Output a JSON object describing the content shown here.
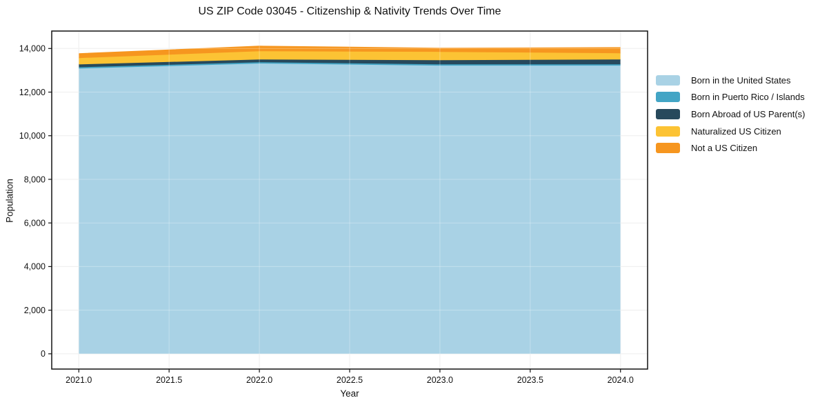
{
  "chart_data": {
    "type": "area",
    "stacked": true,
    "title": "US ZIP Code 03045 - Citizenship & Nativity Trends Over Time",
    "xlabel": "Year",
    "ylabel": "Population",
    "x": [
      2021,
      2022,
      2023,
      2024
    ],
    "series": [
      {
        "name": "Born in the United States",
        "color": "#a9d2e5",
        "values": [
          13080,
          13310,
          13215,
          13215
        ]
      },
      {
        "name": "Born in Puerto Rico / Islands",
        "color": "#43a5c5",
        "values": [
          60,
          60,
          60,
          60
        ]
      },
      {
        "name": "Born Abroad of US Parent(s)",
        "color": "#27495c",
        "values": [
          130,
          125,
          190,
          220
        ]
      },
      {
        "name": "Naturalized US Citizen",
        "color": "#fcc334",
        "values": [
          290,
          380,
          380,
          285
        ]
      },
      {
        "name": "Not a US Citizen",
        "color": "#f6961f",
        "values": [
          190,
          220,
          155,
          250
        ]
      }
    ],
    "totals": [
      13750,
      14095,
      14000,
      14030
    ],
    "xlim": [
      2020.85,
      2024.15
    ],
    "ylim": [
      -700,
      14800
    ],
    "x_ticks": [
      {
        "v": 2021.0,
        "label": "2021.0"
      },
      {
        "v": 2021.5,
        "label": "2021.5"
      },
      {
        "v": 2022.0,
        "label": "2022.0"
      },
      {
        "v": 2022.5,
        "label": "2022.5"
      },
      {
        "v": 2023.0,
        "label": "2023.0"
      },
      {
        "v": 2023.5,
        "label": "2023.5"
      },
      {
        "v": 2024.0,
        "label": "2024.0"
      }
    ],
    "y_ticks": [
      {
        "v": 0,
        "label": "0"
      },
      {
        "v": 2000,
        "label": "2,000"
      },
      {
        "v": 4000,
        "label": "4,000"
      },
      {
        "v": 6000,
        "label": "6,000"
      },
      {
        "v": 8000,
        "label": "8,000"
      },
      {
        "v": 10000,
        "label": "10,000"
      },
      {
        "v": 12000,
        "label": "12,000"
      },
      {
        "v": 14000,
        "label": "14,000"
      }
    ],
    "grid": true,
    "legend_position": "right"
  }
}
